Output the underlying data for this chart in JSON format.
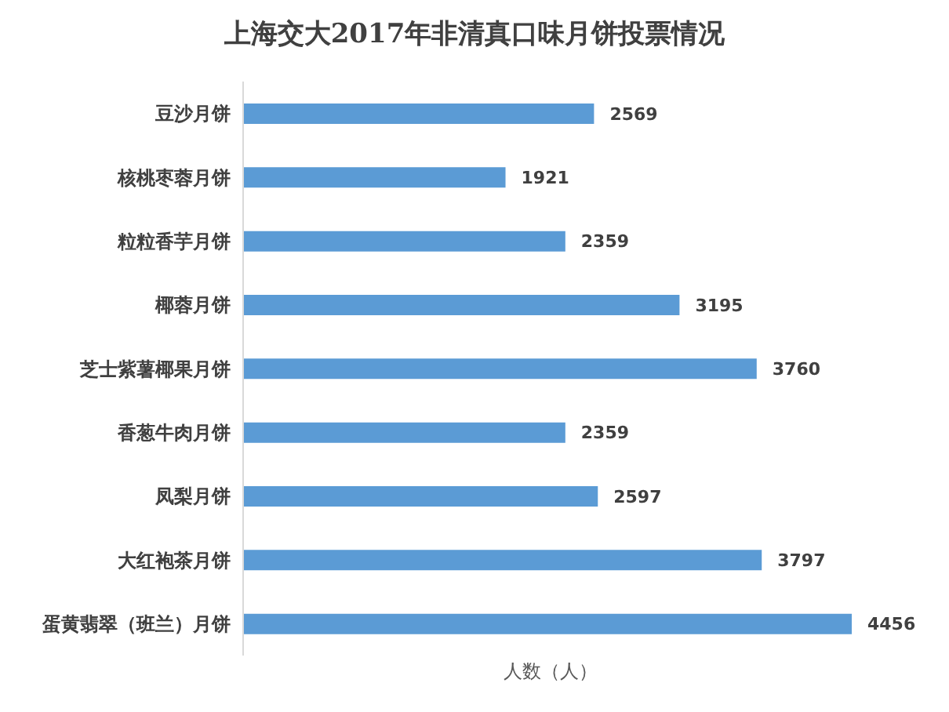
{
  "chart_data": {
    "type": "bar",
    "orientation": "horizontal",
    "title": "上海交大2017年非清真口味月饼投票情况",
    "xlabel": "人数（人）",
    "categories": [
      "豆沙月饼",
      "核桃枣蓉月饼",
      "粒粒香芋月饼",
      "椰蓉月饼",
      "芝士紫薯椰果月饼",
      "香葱牛肉月饼",
      "凤梨月饼",
      "大红袍茶月饼",
      "蛋黄翡翠（班兰）月饼"
    ],
    "values": [
      2569,
      1921,
      2359,
      3195,
      3760,
      2359,
      2597,
      3797,
      4456
    ],
    "color": "#5b9bd5",
    "data_labels": true,
    "tick_labels": "y"
  }
}
